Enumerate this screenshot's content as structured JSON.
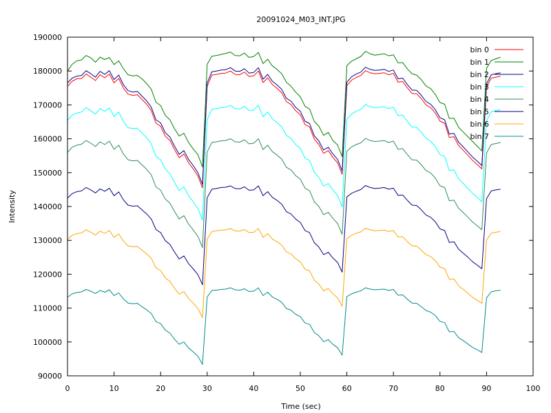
{
  "chart_data": {
    "type": "line",
    "title": "20091024_M03_INT.JPG",
    "xlabel": "Time (sec)",
    "ylabel": "Intensity",
    "xlim": [
      0,
      100
    ],
    "ylim": [
      90000,
      190000
    ],
    "xticks": [
      0,
      10,
      20,
      30,
      40,
      50,
      60,
      70,
      80,
      90,
      100
    ],
    "yticks": [
      90000,
      100000,
      110000,
      120000,
      130000,
      140000,
      150000,
      160000,
      170000,
      180000,
      190000
    ],
    "grid": false,
    "legend_position": "top-right",
    "x": [
      0,
      1,
      2,
      3,
      4,
      5,
      6,
      7,
      8,
      9,
      10,
      11,
      12,
      13,
      14,
      15,
      16,
      17,
      18,
      19,
      20,
      21,
      22,
      23,
      24,
      25,
      26,
      27,
      28,
      29,
      30,
      31,
      32,
      33,
      34,
      35,
      36,
      37,
      38,
      39,
      40,
      41,
      42,
      43,
      44,
      45,
      46,
      47,
      48,
      49,
      50,
      51,
      52,
      53,
      54,
      55,
      56,
      57,
      58,
      59,
      60,
      61,
      62,
      63,
      64,
      65,
      66,
      67,
      68,
      69,
      70,
      71,
      72,
      73,
      74,
      75,
      76,
      77,
      78,
      79,
      80,
      81,
      82,
      83,
      84,
      85,
      86,
      87,
      88,
      89,
      90,
      91,
      92,
      93
    ],
    "series": [
      {
        "name": "bin 0",
        "color": "#ff0000",
        "values": [
          175500,
          177000,
          177700,
          177800,
          179100,
          178200,
          177200,
          178900,
          178000,
          179100,
          176500,
          177800,
          175000,
          173200,
          172800,
          173000,
          171600,
          170200,
          168300,
          164600,
          163700,
          160800,
          159500,
          156800,
          154400,
          155500,
          152900,
          151100,
          149000,
          145500,
          175500,
          178800,
          179000,
          179300,
          179400,
          180000,
          179000,
          178900,
          179700,
          178400,
          178600,
          180000,
          176600,
          178000,
          176000,
          174900,
          173600,
          171000,
          170100,
          168300,
          167100,
          164200,
          163500,
          159900,
          158300,
          155700,
          156500,
          154500,
          152900,
          149500,
          175700,
          177300,
          178100,
          178700,
          180100,
          179500,
          179200,
          179300,
          179500,
          178900,
          179300,
          176700,
          176900,
          175000,
          173400,
          173300,
          171800,
          170000,
          169200,
          167600,
          165200,
          164600,
          160400,
          160600,
          158000,
          156600,
          155100,
          153600,
          152400,
          151100,
          175200,
          177900,
          178200,
          178500
        ]
      },
      {
        "name": "bin 1",
        "color": "#008000",
        "values": [
          180000,
          182000,
          183000,
          183300,
          184600,
          183900,
          182600,
          184100,
          183400,
          184000,
          181900,
          183000,
          180700,
          178900,
          178600,
          178700,
          177700,
          176300,
          174600,
          170800,
          169800,
          166900,
          165600,
          162900,
          160800,
          161600,
          158900,
          157000,
          155300,
          151700,
          182000,
          184400,
          184600,
          184900,
          185200,
          185600,
          184600,
          184500,
          185300,
          184000,
          184300,
          185500,
          182200,
          183500,
          181500,
          180500,
          179200,
          176700,
          175500,
          173800,
          172400,
          169600,
          168800,
          165100,
          163700,
          161000,
          161900,
          159500,
          158200,
          154700,
          181600,
          182900,
          183600,
          184300,
          185800,
          185100,
          184700,
          184900,
          185100,
          184500,
          184800,
          182400,
          182500,
          180600,
          179200,
          178800,
          177400,
          175600,
          174800,
          173100,
          170700,
          170200,
          166000,
          166100,
          163400,
          162000,
          160600,
          159200,
          157800,
          156400,
          180800,
          183100,
          183600,
          184100
        ]
      },
      {
        "name": "bin 2",
        "color": "#00008b",
        "values": [
          176500,
          177900,
          178500,
          178700,
          180100,
          179200,
          178200,
          179900,
          179000,
          180100,
          177500,
          178800,
          176000,
          174200,
          173800,
          174000,
          172600,
          171200,
          169300,
          165600,
          164700,
          161800,
          160500,
          157800,
          155400,
          156500,
          153900,
          152100,
          150000,
          146500,
          176500,
          179800,
          180000,
          180300,
          180400,
          181000,
          180000,
          179900,
          180700,
          179400,
          179600,
          181000,
          177600,
          179000,
          177000,
          175900,
          174600,
          172000,
          171100,
          169300,
          168100,
          165200,
          164500,
          160900,
          159300,
          156700,
          157500,
          155500,
          153900,
          150500,
          176700,
          178300,
          179100,
          179700,
          181100,
          180500,
          180200,
          180300,
          180500,
          179900,
          180300,
          177700,
          177900,
          176000,
          174400,
          174300,
          172800,
          171000,
          170200,
          168600,
          166200,
          165600,
          161400,
          161600,
          159000,
          157600,
          156100,
          154600,
          153400,
          152100,
          176200,
          178900,
          179200,
          179500
        ]
      },
      {
        "name": "bin 3",
        "color": "#00ffff",
        "values": [
          165400,
          167000,
          167600,
          167900,
          169200,
          168300,
          167300,
          168900,
          168100,
          169100,
          166600,
          167900,
          165100,
          163300,
          163000,
          163100,
          161700,
          160300,
          158500,
          154800,
          153800,
          151000,
          149700,
          147100,
          144700,
          145800,
          143200,
          141400,
          139400,
          136000,
          165600,
          168700,
          168900,
          169200,
          169300,
          169900,
          168900,
          168800,
          169600,
          168300,
          168500,
          169900,
          166500,
          167900,
          165900,
          164800,
          163500,
          161000,
          160100,
          158300,
          157200,
          154300,
          153600,
          150100,
          148600,
          146000,
          146800,
          144900,
          143300,
          139900,
          165800,
          167300,
          168100,
          168700,
          170100,
          169500,
          169200,
          169300,
          169500,
          168900,
          169300,
          166800,
          167000,
          165100,
          163500,
          163400,
          161900,
          160100,
          159300,
          157700,
          155300,
          154800,
          150600,
          150800,
          148200,
          146800,
          145300,
          143900,
          142700,
          141400,
          165300,
          168000,
          168300,
          168600
        ]
      },
      {
        "name": "bin 4",
        "color": "#2e8b57",
        "values": [
          156000,
          157500,
          158100,
          158400,
          159500,
          158700,
          157700,
          159100,
          158300,
          159300,
          156900,
          158100,
          155500,
          153800,
          153500,
          153600,
          152300,
          151000,
          149300,
          145800,
          144800,
          142200,
          141000,
          138500,
          136300,
          137300,
          134800,
          133100,
          131200,
          127900,
          156100,
          158900,
          159100,
          159400,
          159500,
          160000,
          159100,
          159000,
          159700,
          158500,
          158700,
          160000,
          156800,
          158100,
          156200,
          155200,
          154000,
          151600,
          150800,
          149100,
          148100,
          145400,
          144700,
          141400,
          140000,
          137600,
          138300,
          136500,
          135000,
          131800,
          156300,
          157600,
          158300,
          158800,
          160100,
          159500,
          159200,
          159300,
          159500,
          158900,
          159300,
          156900,
          157100,
          155300,
          153800,
          153700,
          152300,
          150600,
          149900,
          148400,
          146100,
          145600,
          141700,
          141900,
          139500,
          138200,
          136800,
          135400,
          134300,
          133100,
          155800,
          158300,
          158600,
          158900
        ]
      },
      {
        "name": "bin 5",
        "color": "#000080",
        "values": [
          142500,
          143800,
          144400,
          144600,
          145600,
          144900,
          144000,
          145200,
          144500,
          145400,
          143200,
          144300,
          142000,
          140400,
          140100,
          140200,
          139000,
          137800,
          136300,
          133200,
          132300,
          129900,
          128800,
          126500,
          124500,
          125400,
          123100,
          121600,
          119900,
          116900,
          142600,
          145100,
          145300,
          145600,
          145700,
          146100,
          145300,
          145200,
          145800,
          144800,
          144900,
          146100,
          143200,
          144400,
          142700,
          141800,
          140700,
          138500,
          137800,
          136300,
          135300,
          132900,
          132300,
          129300,
          128000,
          125800,
          126500,
          124800,
          123500,
          120600,
          142800,
          143900,
          144500,
          145000,
          146200,
          145600,
          145300,
          145400,
          145600,
          145100,
          145400,
          143300,
          143400,
          141800,
          140400,
          140300,
          139000,
          137500,
          136800,
          135500,
          133400,
          132900,
          129400,
          129600,
          127400,
          126200,
          125000,
          123700,
          122700,
          121600,
          142300,
          144600,
          144900,
          145100
        ]
      },
      {
        "name": "bin 6",
        "color": "#ffa500",
        "values": [
          130300,
          131500,
          132000,
          132200,
          133100,
          132400,
          131600,
          132700,
          132100,
          132900,
          130900,
          131900,
          129800,
          128400,
          128100,
          128200,
          127100,
          126000,
          124700,
          121900,
          121100,
          118900,
          117900,
          115800,
          114100,
          114900,
          112800,
          111500,
          109900,
          107200,
          130400,
          132600,
          132800,
          133000,
          133100,
          133500,
          132800,
          132700,
          133200,
          132300,
          132400,
          133500,
          130900,
          132000,
          130400,
          129600,
          128600,
          126600,
          126000,
          124600,
          123700,
          121500,
          121000,
          118300,
          117100,
          115100,
          115800,
          114200,
          113000,
          110500,
          130500,
          131500,
          132100,
          132500,
          133600,
          133100,
          132800,
          132900,
          133000,
          132600,
          132900,
          131000,
          131100,
          129600,
          128400,
          128300,
          127100,
          125800,
          125200,
          124000,
          122100,
          121700,
          118500,
          118600,
          116600,
          115500,
          114400,
          113200,
          112300,
          111400,
          130100,
          132100,
          132400,
          132600
        ]
      },
      {
        "name": "bin 7",
        "color": "#008b8b",
        "values": [
          113200,
          114200,
          114600,
          114800,
          115500,
          115000,
          114300,
          115200,
          114700,
          115400,
          113700,
          114500,
          112700,
          111500,
          111300,
          111400,
          110400,
          109500,
          108400,
          106000,
          105400,
          103500,
          102600,
          100800,
          99300,
          100000,
          98200,
          97100,
          95800,
          93400,
          113300,
          115200,
          115300,
          115500,
          115600,
          116000,
          115400,
          115300,
          115700,
          114900,
          115000,
          116000,
          113700,
          114700,
          113300,
          112600,
          111700,
          109900,
          109400,
          108200,
          107500,
          105600,
          105200,
          102800,
          101800,
          100100,
          100700,
          99300,
          98300,
          96100,
          113400,
          114200,
          114700,
          115100,
          116000,
          115600,
          115400,
          115500,
          115600,
          115200,
          115500,
          113800,
          113900,
          112600,
          111500,
          111400,
          110400,
          109300,
          108800,
          107800,
          106100,
          105700,
          103000,
          103100,
          101300,
          100400,
          99400,
          98400,
          97700,
          96900,
          113000,
          114800,
          115100,
          115300
        ]
      }
    ]
  }
}
